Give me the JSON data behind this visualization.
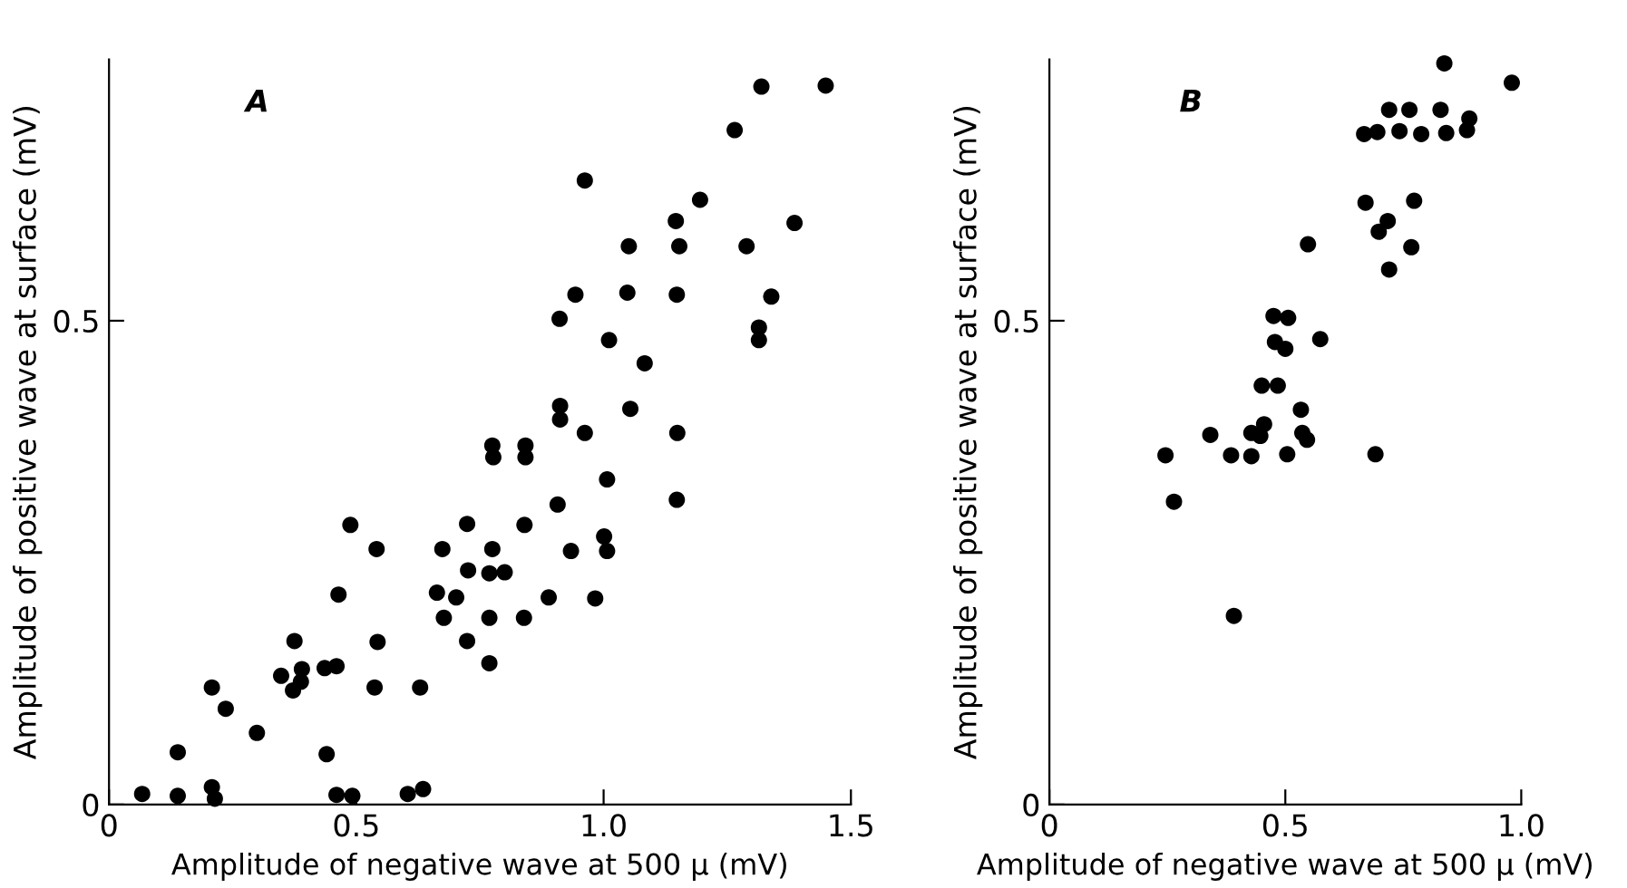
{
  "chart_data": [
    {
      "type": "scatter",
      "title": "A",
      "xlabel": "Amplitude of negative wave at 500 μ (mV)",
      "ylabel": "Amplitude of positive wave at surface (mV)",
      "xlim": [
        0,
        1.5
      ],
      "ylim": [
        0,
        0.77
      ],
      "xticks": [
        0,
        0.5,
        {
          "value": 1,
          "label": "1.0"
        },
        1.5
      ],
      "yticks": [
        0,
        0.5
      ],
      "grid": false,
      "marker": "circle",
      "series": [
        {
          "color": "#000000",
          "x": [
            0.067,
            0.139,
            0.139,
            0.208,
            0.214,
            0.208,
            0.236,
            0.299,
            0.348,
            0.372,
            0.375,
            0.39,
            0.388,
            0.436,
            0.46,
            0.44,
            0.46,
            0.492,
            0.488,
            0.464,
            0.541,
            0.543,
            0.537,
            0.604,
            0.635,
            0.629,
            0.663,
            0.677,
            0.674,
            0.702,
            0.724,
            0.726,
            0.724,
            0.769,
            0.769,
            0.769,
            0.775,
            0.775,
            0.777,
            0.8,
            0.842,
            0.842,
            0.84,
            0.839,
            0.889,
            0.907,
            0.934,
            0.912,
            0.912,
            0.962,
            0.983,
            1.001,
            1.007,
            1.007,
            1.054,
            1.083,
            1.011,
            0.911,
            0.943,
            1.048,
            1.051,
            0.962,
            1.148,
            1.153,
            1.146,
            1.195,
            1.149,
            1.148,
            1.265,
            1.319,
            1.449,
            1.289,
            1.386,
            1.339,
            1.314,
            1.314
          ],
          "values": [
            0.011,
            0.009,
            0.054,
            0.018,
            0.006,
            0.121,
            0.099,
            0.074,
            0.133,
            0.118,
            0.169,
            0.14,
            0.127,
            0.141,
            0.143,
            0.052,
            0.01,
            0.009,
            0.289,
            0.217,
            0.264,
            0.168,
            0.121,
            0.011,
            0.016,
            0.121,
            0.219,
            0.193,
            0.264,
            0.214,
            0.29,
            0.242,
            0.169,
            0.146,
            0.193,
            0.239,
            0.264,
            0.371,
            0.359,
            0.24,
            0.371,
            0.359,
            0.289,
            0.193,
            0.214,
            0.31,
            0.262,
            0.412,
            0.398,
            0.384,
            0.213,
            0.277,
            0.262,
            0.336,
            0.409,
            0.456,
            0.48,
            0.502,
            0.527,
            0.529,
            0.577,
            0.645,
            0.527,
            0.577,
            0.603,
            0.625,
            0.384,
            0.315,
            0.697,
            0.742,
            0.743,
            0.577,
            0.601,
            0.525,
            0.493,
            0.48
          ]
        }
      ]
    },
    {
      "type": "scatter",
      "title": "B",
      "xlabel": "Amplitude of negative wave at 500 μ (mV)",
      "ylabel": "Amplitude of positive wave at surface (mV)",
      "xlim": [
        0,
        1.0
      ],
      "ylim": [
        0,
        0.77
      ],
      "xticks": [
        0,
        0.5,
        {
          "value": 1,
          "label": "1.0"
        }
      ],
      "yticks": [
        0,
        0.5
      ],
      "grid": false,
      "marker": "circle",
      "series": [
        {
          "color": "#000000",
          "x": [
            0.837,
            0.98,
            0.72,
            0.763,
            0.829,
            0.89,
            0.885,
            0.667,
            0.695,
            0.742,
            0.788,
            0.841,
            0.67,
            0.773,
            0.717,
            0.698,
            0.767,
            0.72,
            0.548,
            0.475,
            0.506,
            0.574,
            0.478,
            0.5,
            0.45,
            0.484,
            0.533,
            0.341,
            0.428,
            0.455,
            0.447,
            0.536,
            0.546,
            0.246,
            0.385,
            0.428,
            0.504,
            0.691,
            0.264,
            0.391
          ],
          "values": [
            0.766,
            0.746,
            0.718,
            0.718,
            0.718,
            0.709,
            0.697,
            0.693,
            0.695,
            0.696,
            0.693,
            0.694,
            0.622,
            0.624,
            0.603,
            0.592,
            0.576,
            0.553,
            0.579,
            0.505,
            0.503,
            0.481,
            0.478,
            0.471,
            0.433,
            0.433,
            0.408,
            0.382,
            0.384,
            0.393,
            0.381,
            0.384,
            0.377,
            0.361,
            0.361,
            0.36,
            0.362,
            0.362,
            0.313,
            0.195
          ]
        }
      ]
    }
  ]
}
